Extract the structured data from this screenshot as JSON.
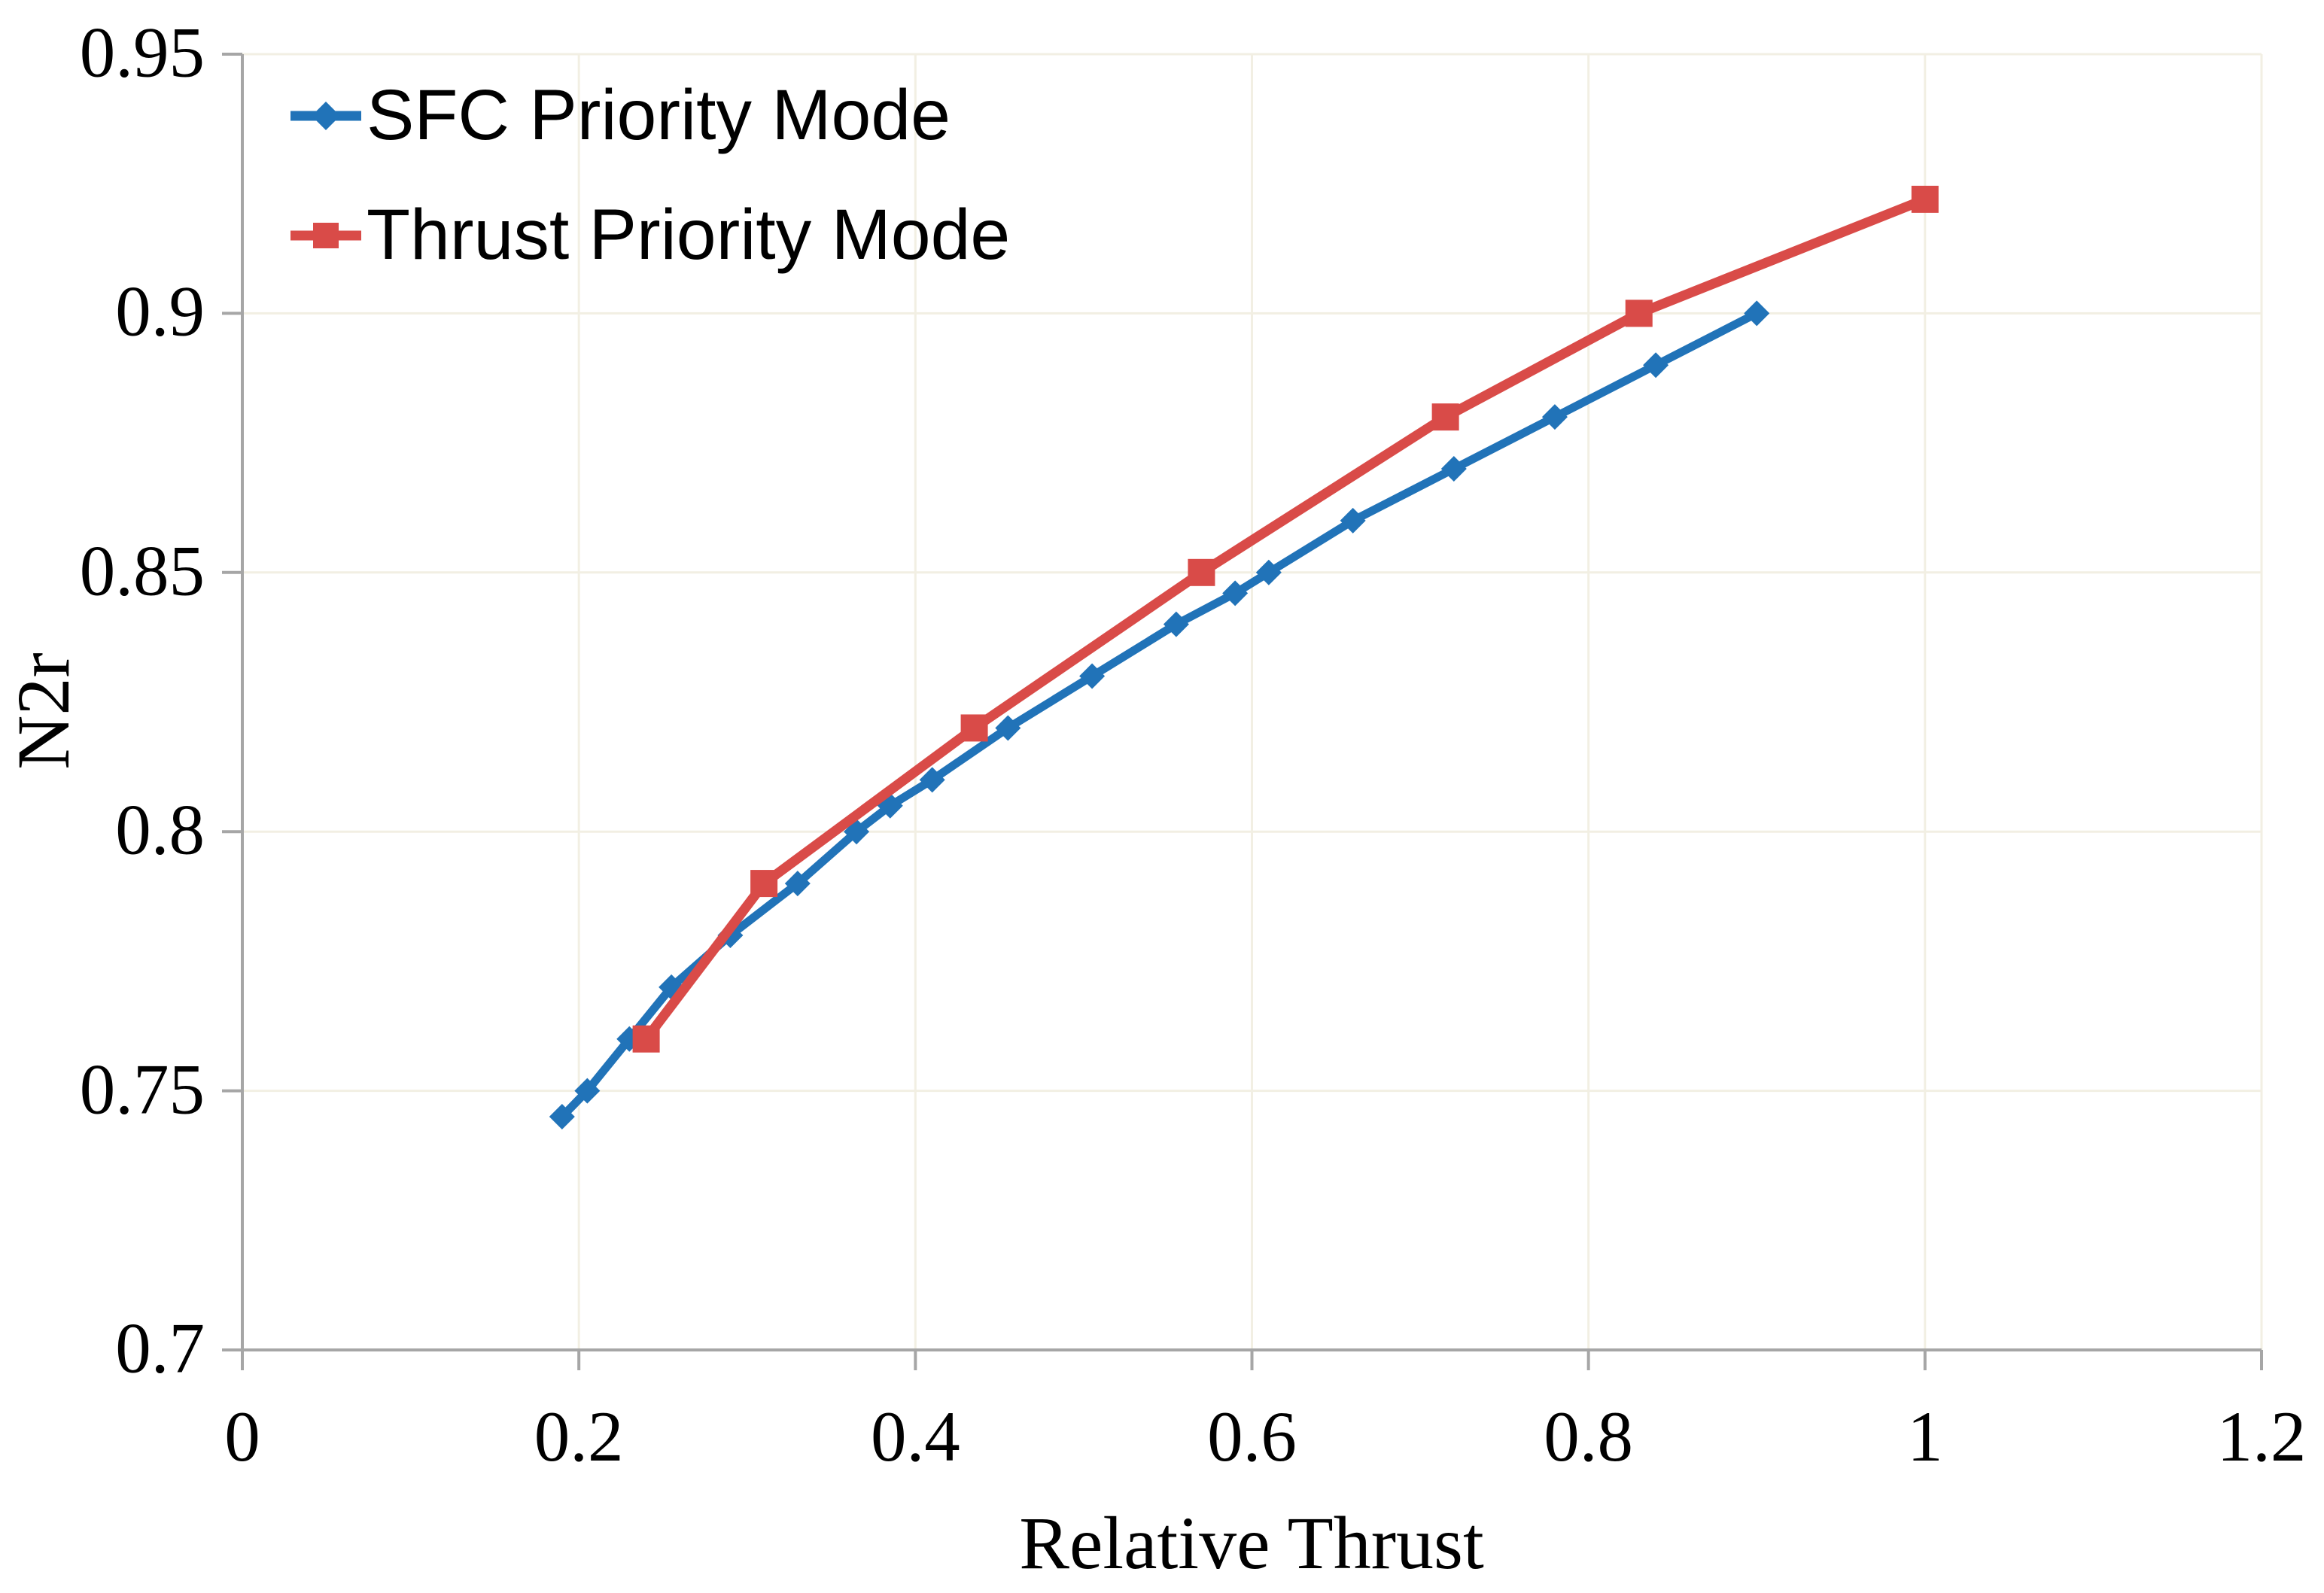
{
  "chart_data": {
    "type": "line",
    "title": "",
    "xlabel": "Relative Thrust",
    "ylabel": "N2r",
    "xlim": [
      0,
      1.2
    ],
    "ylim": [
      0.7,
      0.95
    ],
    "xticks": [
      0,
      0.2,
      0.4,
      0.6,
      0.8,
      1,
      1.2
    ],
    "xtick_labels": [
      "0",
      "0.2",
      "0.4",
      "0.6",
      "0.8",
      "1",
      "1.2"
    ],
    "yticks": [
      0.7,
      0.75,
      0.8,
      0.85,
      0.9,
      0.95
    ],
    "ytick_labels": [
      "0.7",
      "0.75",
      "0.8",
      "0.85",
      "0.9",
      "0.95"
    ],
    "grid": true,
    "legend_position": "top-left-inside",
    "colors": {
      "axis": "#A6A6A6",
      "grid": "#F2EFE3",
      "text": "#000000",
      "background": "#FFFFFF"
    },
    "series": [
      {
        "name": "SFC Priority Mode",
        "color": "#2173B8",
        "marker": "diamond",
        "line_width": 11,
        "x": [
          0.19,
          0.205,
          0.23,
          0.255,
          0.29,
          0.33,
          0.365,
          0.385,
          0.41,
          0.455,
          0.505,
          0.555,
          0.59,
          0.61,
          0.66,
          0.72,
          0.78,
          0.84,
          0.9
        ],
        "y": [
          0.745,
          0.75,
          0.76,
          0.77,
          0.78,
          0.79,
          0.8,
          0.805,
          0.81,
          0.82,
          0.83,
          0.84,
          0.846,
          0.85,
          0.86,
          0.87,
          0.88,
          0.89,
          0.9
        ]
      },
      {
        "name": "Thrust Priority Mode",
        "color": "#D94B48",
        "marker": "square",
        "line_width": 13,
        "x": [
          0.24,
          0.31,
          0.435,
          0.57,
          0.715,
          0.83,
          1.0
        ],
        "y": [
          0.76,
          0.79,
          0.82,
          0.85,
          0.88,
          0.9,
          0.922
        ]
      }
    ]
  }
}
